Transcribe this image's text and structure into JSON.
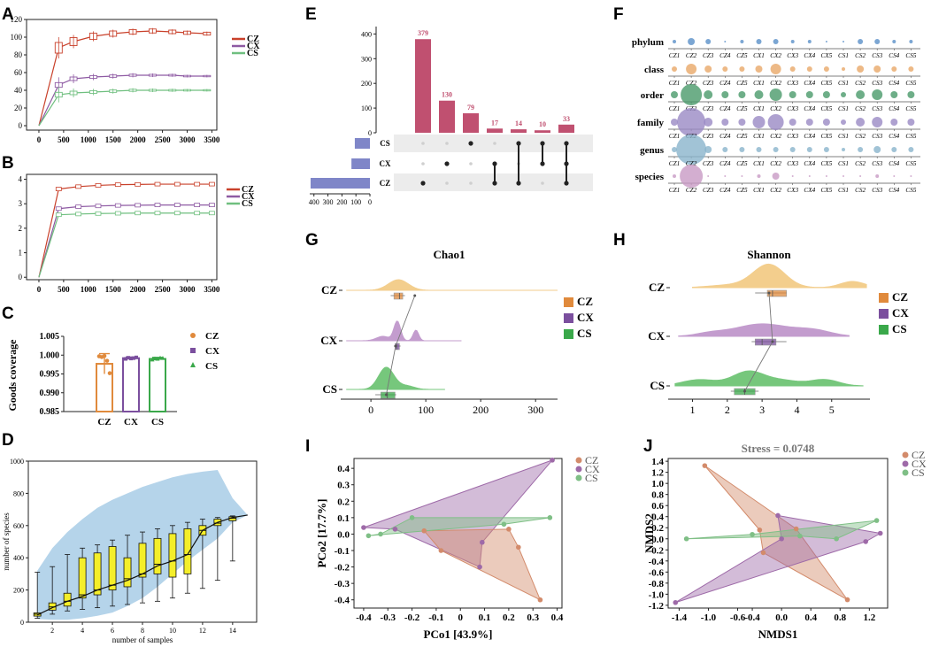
{
  "colors": {
    "CZ": "#c9412b",
    "CX": "#8e5aa3",
    "CS": "#6fbf7f",
    "CZ_alt": "#e08a3c",
    "CX_alt": "#7b4f9e",
    "CS_alt": "#3aa84a",
    "CZ_ord": "#d38b6b",
    "CX_ord": "#9e6aa8",
    "CS_ord": "#7fbf86",
    "upset_bar": "#c05070",
    "upset_set": "#7f86c8",
    "bubble_class": "#e8a868",
    "bubble_order": "#4a9a6a",
    "bubble_family": "#9a8ac4",
    "bubble_genus": "#8ab4cc",
    "bubble_species": "#c89ac4",
    "bubble_phylum": "#5a90c8",
    "dm_fill": "#a8cce6",
    "dm_box": "#f4ee2a"
  },
  "panels": {
    "A": {
      "letter": "A",
      "legend": [
        "CZ",
        "CX",
        "CS"
      ]
    },
    "B": {
      "letter": "B",
      "legend": [
        "CZ",
        "CX",
        "CS"
      ]
    },
    "C": {
      "letter": "C",
      "legend": [
        "CZ",
        "CX",
        "CS"
      ]
    },
    "D": {
      "letter": "D"
    },
    "E": {
      "letter": "E"
    },
    "F": {
      "letter": "F"
    },
    "G": {
      "letter": "G",
      "legend": [
        "CZ",
        "CX",
        "CS"
      ]
    },
    "H": {
      "letter": "H",
      "legend": [
        "CZ",
        "CX",
        "CS"
      ]
    },
    "I": {
      "letter": "I",
      "legend": [
        "CZ",
        "CX",
        "CS"
      ]
    },
    "J": {
      "letter": "J",
      "legend": [
        "CZ",
        "CX",
        "CS"
      ]
    }
  },
  "chart_data": [
    {
      "id": "A",
      "type": "line",
      "x": [
        0,
        400,
        700,
        1100,
        1500,
        1900,
        2300,
        2700,
        3000,
        3400
      ],
      "xticks": [
        "0",
        "500",
        "1000",
        "1500",
        "2000",
        "2500",
        "3000",
        "3500"
      ],
      "xtick_values": [
        0,
        500,
        1000,
        1500,
        2000,
        2500,
        3000,
        3500
      ],
      "xlim": [
        -250,
        3600
      ],
      "yticks": [
        "0",
        "20",
        "40",
        "60",
        "80",
        "100",
        "120"
      ],
      "ylim": [
        -5,
        120
      ],
      "series": [
        {
          "name": "CZ",
          "values": [
            0,
            88,
            95,
            101,
            104,
            106,
            107,
            106,
            105,
            104
          ]
        },
        {
          "name": "CX",
          "values": [
            0,
            46,
            53,
            55,
            56,
            57,
            57,
            57,
            56,
            56
          ]
        },
        {
          "name": "CS",
          "values": [
            0,
            35,
            37,
            38,
            39,
            40,
            40,
            40,
            40,
            40
          ]
        }
      ]
    },
    {
      "id": "B",
      "type": "line",
      "x": [
        0,
        400,
        800,
        1200,
        1600,
        2000,
        2400,
        2800,
        3200,
        3500
      ],
      "xticks": [
        "0",
        "500",
        "1000",
        "1500",
        "2000",
        "2500",
        "3000",
        "3500"
      ],
      "xtick_values": [
        0,
        500,
        1000,
        1500,
        2000,
        2500,
        3000,
        3500
      ],
      "xlim": [
        -250,
        3600
      ],
      "yticks": [
        "0",
        "1",
        "2",
        "3",
        "4"
      ],
      "ylim": [
        -0.1,
        4.2
      ],
      "series": [
        {
          "name": "CZ",
          "values": [
            0,
            3.6,
            3.7,
            3.75,
            3.78,
            3.79,
            3.8,
            3.8,
            3.8,
            3.8
          ]
        },
        {
          "name": "CX",
          "values": [
            0,
            2.8,
            2.88,
            2.91,
            2.93,
            2.94,
            2.95,
            2.95,
            2.95,
            2.95
          ]
        },
        {
          "name": "CS",
          "values": [
            0,
            2.55,
            2.58,
            2.6,
            2.61,
            2.62,
            2.62,
            2.62,
            2.62,
            2.62
          ]
        }
      ]
    },
    {
      "id": "C",
      "type": "bar",
      "categories": [
        "CZ",
        "CX",
        "CS"
      ],
      "values": [
        0.9977,
        0.9992,
        0.999
      ],
      "errors": [
        0.0027,
        0.0003,
        0.0004
      ],
      "points": [
        [
          0.9997,
          0.9995,
          0.9998,
          0.9985,
          0.9952
        ],
        [
          0.999,
          0.9993,
          0.9991,
          0.9992,
          0.9994
        ],
        [
          0.9988,
          0.9991,
          0.999,
          0.9993,
          0.9992
        ]
      ],
      "ylabel": "Goods coverage",
      "yticks": [
        "0.985",
        "0.990",
        "0.995",
        "1.000",
        "1.005"
      ],
      "ylim": [
        0.985,
        1.005
      ]
    },
    {
      "id": "D",
      "type": "box",
      "xlabel": "number of samples",
      "ylabel": "number of species",
      "xticks": [
        "2",
        "4",
        "6",
        "8",
        "10",
        "12",
        "14"
      ],
      "yticks": [
        "0",
        "200",
        "400",
        "600",
        "800",
        "1000"
      ],
      "xlim": [
        0.4,
        15.6
      ],
      "ylim": [
        0,
        1000
      ],
      "boxes": [
        {
          "x": 1,
          "min": 25,
          "q1": 38,
          "med": 50,
          "q3": 58,
          "max": 310
        },
        {
          "x": 2,
          "min": 50,
          "q1": 75,
          "med": 95,
          "q3": 120,
          "max": 345
        },
        {
          "x": 3,
          "min": 70,
          "q1": 100,
          "med": 130,
          "q3": 180,
          "max": 420
        },
        {
          "x": 4,
          "min": 80,
          "q1": 150,
          "med": 170,
          "q3": 400,
          "max": 460
        },
        {
          "x": 5,
          "min": 90,
          "q1": 170,
          "med": 200,
          "q3": 430,
          "max": 480
        },
        {
          "x": 6,
          "min": 100,
          "q1": 200,
          "med": 230,
          "q3": 470,
          "max": 510
        },
        {
          "x": 7,
          "min": 110,
          "q1": 220,
          "med": 270,
          "q3": 400,
          "max": 540
        },
        {
          "x": 8,
          "min": 120,
          "q1": 280,
          "med": 300,
          "q3": 490,
          "max": 560
        },
        {
          "x": 9,
          "min": 130,
          "q1": 300,
          "med": 360,
          "q3": 520,
          "max": 580
        },
        {
          "x": 10,
          "min": 150,
          "q1": 280,
          "med": 380,
          "q3": 550,
          "max": 600
        },
        {
          "x": 11,
          "min": 180,
          "q1": 300,
          "med": 420,
          "q3": 580,
          "max": 620
        },
        {
          "x": 12,
          "min": 210,
          "q1": 540,
          "med": 570,
          "q3": 600,
          "max": 640
        },
        {
          "x": 13,
          "min": 260,
          "q1": 600,
          "med": 615,
          "q3": 640,
          "max": 650
        },
        {
          "x": 14,
          "min": 380,
          "q1": 630,
          "med": 645,
          "q3": 655,
          "max": 660
        }
      ],
      "mean_line": [
        [
          1,
          45
        ],
        [
          2,
          90
        ],
        [
          3,
          130
        ],
        [
          4,
          160
        ],
        [
          5,
          200
        ],
        [
          6,
          230
        ],
        [
          7,
          260
        ],
        [
          8,
          300
        ],
        [
          9,
          350
        ],
        [
          10,
          380
        ],
        [
          11,
          420
        ],
        [
          12,
          570
        ],
        [
          13,
          620
        ],
        [
          14,
          650
        ],
        [
          15,
          665
        ]
      ],
      "band_upper": [
        [
          1,
          320
        ],
        [
          2,
          460
        ],
        [
          3,
          560
        ],
        [
          4,
          640
        ],
        [
          5,
          710
        ],
        [
          6,
          760
        ],
        [
          7,
          800
        ],
        [
          8,
          840
        ],
        [
          9,
          870
        ],
        [
          10,
          900
        ],
        [
          11,
          920
        ],
        [
          12,
          935
        ],
        [
          13,
          945
        ],
        [
          14,
          770
        ],
        [
          15,
          665
        ]
      ],
      "band_lower": [
        [
          1,
          20
        ],
        [
          2,
          15
        ],
        [
          3,
          15
        ],
        [
          4,
          25
        ],
        [
          5,
          40
        ],
        [
          6,
          60
        ],
        [
          7,
          100
        ],
        [
          8,
          150
        ],
        [
          9,
          220
        ],
        [
          10,
          300
        ],
        [
          11,
          380
        ],
        [
          12,
          450
        ],
        [
          13,
          520
        ],
        [
          14,
          620
        ],
        [
          15,
          665
        ]
      ]
    },
    {
      "id": "E",
      "type": "bar",
      "subtype": "upset",
      "values": [
        379,
        130,
        79,
        17,
        14,
        10,
        33
      ],
      "labels": [
        "379",
        "130",
        "79",
        "17",
        "14",
        "10",
        "33"
      ],
      "yticks": [
        "0",
        "100",
        "200",
        "300",
        "400"
      ],
      "ylim": [
        0,
        430
      ],
      "sets": [
        "CS",
        "CX",
        "CZ"
      ],
      "set_sizes": [
        108,
        132,
        424
      ],
      "set_axis_ticks": [
        "400",
        "300",
        "200",
        "100",
        "0"
      ],
      "set_axis_max": 430,
      "intersections": [
        [
          "CZ"
        ],
        [
          "CX"
        ],
        [
          "CS"
        ],
        [
          "CX",
          "CZ"
        ],
        [
          "CS",
          "CZ"
        ],
        [
          "CS",
          "CX"
        ],
        [
          "CS",
          "CX",
          "CZ"
        ]
      ]
    },
    {
      "id": "F",
      "type": "scatter",
      "subtype": "bubble",
      "rows": [
        "phylum",
        "class",
        "order",
        "family",
        "genus",
        "species"
      ],
      "columns": [
        "CZ1",
        "CZ2",
        "CZ3",
        "CZ4",
        "CZ5",
        "CX1",
        "CX2",
        "CX3",
        "CX4",
        "CX5",
        "CS1",
        "CS2",
        "CS3",
        "CS4",
        "CS5"
      ],
      "sizes": [
        [
          2,
          4,
          3,
          1,
          2,
          3,
          3,
          2,
          2,
          1,
          1,
          3,
          3,
          2,
          2
        ],
        [
          3,
          6,
          4,
          3,
          3,
          4,
          6,
          3,
          3,
          3,
          2,
          4,
          4,
          3,
          3
        ],
        [
          4,
          12,
          5,
          4,
          4,
          5,
          7,
          4,
          4,
          4,
          3,
          5,
          6,
          4,
          4
        ],
        [
          4,
          16,
          5,
          4,
          4,
          7,
          9,
          4,
          4,
          4,
          3,
          5,
          6,
          4,
          4
        ],
        [
          3,
          17,
          4,
          3,
          3,
          3,
          3,
          3,
          3,
          3,
          2,
          3,
          4,
          3,
          3
        ],
        [
          2,
          13,
          1,
          1,
          1,
          2,
          4,
          1,
          1,
          1,
          1,
          1,
          2,
          1,
          1
        ]
      ]
    },
    {
      "id": "G",
      "type": "area",
      "subtype": "raincloud",
      "title": "Chao1",
      "categories": [
        "CZ",
        "CX",
        "CS"
      ],
      "xticks": [
        "0",
        "100",
        "200",
        "300"
      ],
      "xtick_values": [
        0,
        100,
        200,
        300
      ],
      "xlim": [
        -55,
        340
      ],
      "means": [
        80,
        45,
        28
      ],
      "boxes": [
        {
          "q1": 42,
          "med": 52,
          "q3": 58,
          "min": 36,
          "max": 62
        },
        {
          "q1": 44,
          "med": 47,
          "q3": 52,
          "min": 42,
          "max": 54
        },
        {
          "q1": 18,
          "med": 30,
          "q3": 44,
          "min": 8,
          "max": 46
        }
      ],
      "density_ranges": [
        [
          -45,
          340
        ],
        [
          -45,
          165
        ],
        [
          -45,
          135
        ]
      ]
    },
    {
      "id": "H",
      "type": "area",
      "subtype": "raincloud",
      "title": "Shannon",
      "categories": [
        "CZ",
        "CX",
        "CS"
      ],
      "xticks": [
        "1",
        "2",
        "3",
        "4",
        "5"
      ],
      "xtick_values": [
        1,
        2,
        3,
        4,
        5
      ],
      "xlim": [
        0.3,
        6.1
      ],
      "means": [
        3.2,
        3.3,
        2.5
      ],
      "boxes": [
        {
          "q1": 3.15,
          "med": 3.3,
          "q3": 3.7,
          "min": 2.8,
          "max": 3.7
        },
        {
          "q1": 2.8,
          "med": 3.0,
          "q3": 3.4,
          "min": 2.7,
          "max": 3.7
        },
        {
          "q1": 2.2,
          "med": 2.5,
          "q3": 2.8,
          "min": 2.1,
          "max": 2.9
        }
      ],
      "density_ranges": [
        [
          1.0,
          6.0
        ],
        [
          0.6,
          5.5
        ],
        [
          0.5,
          5.9
        ]
      ]
    },
    {
      "id": "I",
      "type": "scatter",
      "xlabel": "PCo1 [43.9%]",
      "ylabel": "PCo2 [17.7%]",
      "xticks": [
        "-0.4",
        "-0.3",
        "-0.2",
        "-0.1",
        "0",
        "0.1",
        "0.2",
        "0.3",
        "0.4"
      ],
      "xtick_values": [
        -0.4,
        -0.3,
        -0.2,
        -0.1,
        0,
        0.1,
        0.2,
        0.3,
        0.4
      ],
      "yticks": [
        "-0.4",
        "-0.3",
        "-0.2",
        "-0.1",
        "0.0",
        "0.1",
        "0.2",
        "0.3",
        "0.4"
      ],
      "ytick_values": [
        -0.4,
        -0.3,
        -0.2,
        -0.1,
        0,
        0.1,
        0.2,
        0.3,
        0.4
      ],
      "xlim": [
        -0.44,
        0.42
      ],
      "ylim": [
        -0.45,
        0.46
      ],
      "series": [
        {
          "name": "CZ",
          "points": [
            [
              -0.15,
              0.02
            ],
            [
              -0.08,
              -0.1
            ],
            [
              0.2,
              0.03
            ],
            [
              0.24,
              -0.08
            ],
            [
              0.33,
              -0.4
            ]
          ]
        },
        {
          "name": "CX",
          "points": [
            [
              -0.4,
              0.04
            ],
            [
              -0.27,
              0.03
            ],
            [
              0.09,
              -0.05
            ],
            [
              0.08,
              -0.2
            ],
            [
              0.38,
              0.45
            ]
          ]
        },
        {
          "name": "CS",
          "points": [
            [
              -0.38,
              -0.01
            ],
            [
              -0.33,
              0.0
            ],
            [
              -0.2,
              0.1
            ],
            [
              0.18,
              0.06
            ],
            [
              0.37,
              0.1
            ]
          ]
        }
      ]
    },
    {
      "id": "J",
      "type": "scatter",
      "title": "Stress = 0.0748",
      "xlabel": "NMDS1",
      "ylabel": "NMDS2",
      "xticks": [
        "-1.4",
        "-1.0",
        "-0.6",
        "-0.4",
        "0.0",
        "0.4",
        "0.8",
        "1.2"
      ],
      "xtick_values": [
        -1.4,
        -1.0,
        -0.6,
        -0.4,
        0.0,
        0.4,
        0.8,
        1.2
      ],
      "yticks": [
        "-1.2",
        "-1.0",
        "-0.8",
        "-0.6",
        "-0.4",
        "-0.2",
        "0.0",
        "0.2",
        "0.4",
        "0.6",
        "0.8",
        "1.0",
        "1.2",
        "1.4"
      ],
      "ytick_values": [
        -1.2,
        -1.0,
        -0.8,
        -0.6,
        -0.4,
        -0.2,
        0.0,
        0.2,
        0.4,
        0.6,
        0.8,
        1.0,
        1.2,
        1.4
      ],
      "xlim": [
        -1.55,
        1.45
      ],
      "ylim": [
        -1.25,
        1.45
      ],
      "series": [
        {
          "name": "CZ",
          "points": [
            [
              -1.05,
              1.32
            ],
            [
              -0.3,
              0.16
            ],
            [
              -0.25,
              -0.25
            ],
            [
              0.2,
              0.18
            ],
            [
              0.9,
              -1.1
            ]
          ]
        },
        {
          "name": "CX",
          "points": [
            [
              -1.45,
              -1.15
            ],
            [
              -0.05,
              0.42
            ],
            [
              0.0,
              0.0
            ],
            [
              1.15,
              -0.05
            ],
            [
              1.35,
              0.1
            ]
          ]
        },
        {
          "name": "CS",
          "points": [
            [
              -1.3,
              0.0
            ],
            [
              -0.4,
              0.08
            ],
            [
              0.25,
              0.05
            ],
            [
              0.75,
              0.0
            ],
            [
              1.3,
              0.33
            ]
          ]
        }
      ]
    }
  ]
}
